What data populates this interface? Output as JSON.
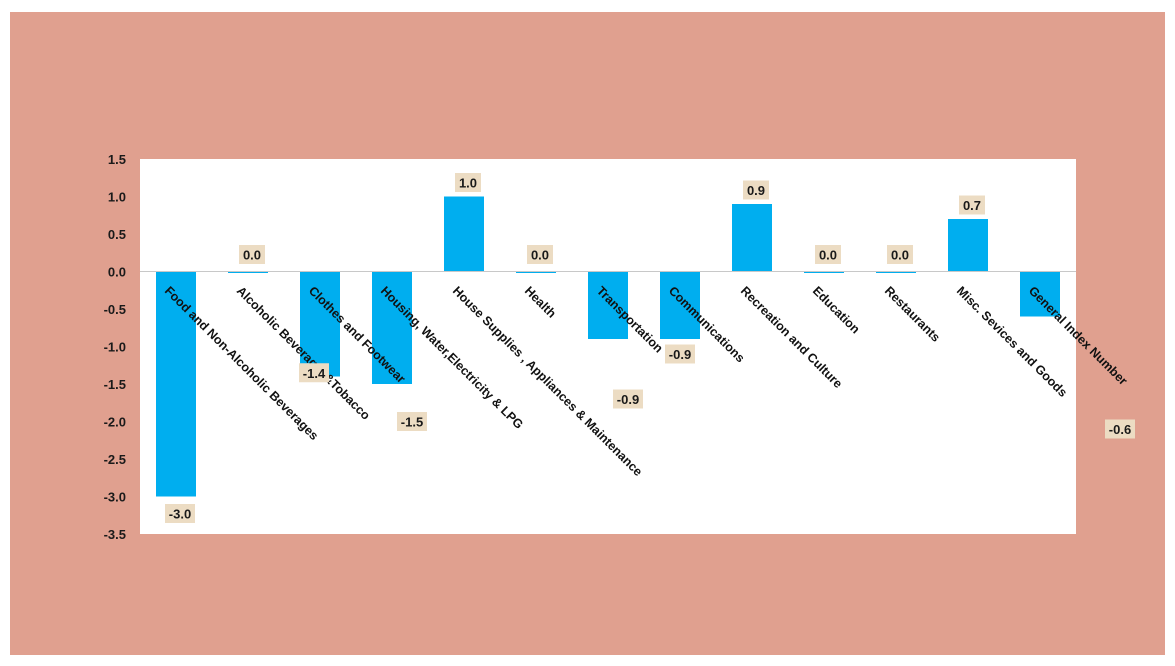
{
  "chart_data": {
    "type": "bar",
    "title": "",
    "xlabel": "",
    "ylabel": "",
    "ylim": [
      -3.5,
      1.5
    ],
    "yticks": [
      "1.5",
      "1.0",
      "0.5",
      "0.0",
      "-0.5",
      "-1.0",
      "-1.5",
      "-2.0",
      "-2.5",
      "-3.0",
      "-3.5"
    ],
    "categories": [
      "Food and Non-Alcoholic Beverages",
      "Alcoholic Beverages&Tobacco",
      "Clothes and Footwear",
      "Housing, Water,Electricity & LPG",
      "House Supplies , Appliances & Maintenance",
      "Health",
      "Transportation",
      "Communications",
      "Recreation and Culture",
      "Education",
      "Restaurants",
      "Misc. Sevices and Goods",
      "General Index Number"
    ],
    "values": [
      -3.0,
      0.0,
      -1.4,
      -1.5,
      1.0,
      0.0,
      -0.9,
      -0.9,
      0.9,
      0.0,
      0.0,
      0.7,
      -0.6
    ],
    "data_labels": [
      "-3.0",
      "0.0",
      "-1.4",
      "-1.5",
      "1.0",
      "0.0",
      "-0.9",
      "-0.9",
      "0.9",
      "0.0",
      "0.0",
      "0.7",
      "-0.6"
    ],
    "grid": false,
    "legend": "none"
  },
  "colors": {
    "background": "#e0a08f",
    "plot_area": "#ffffff",
    "bar": "#00aeef",
    "label_box": "#ecdcc3"
  }
}
